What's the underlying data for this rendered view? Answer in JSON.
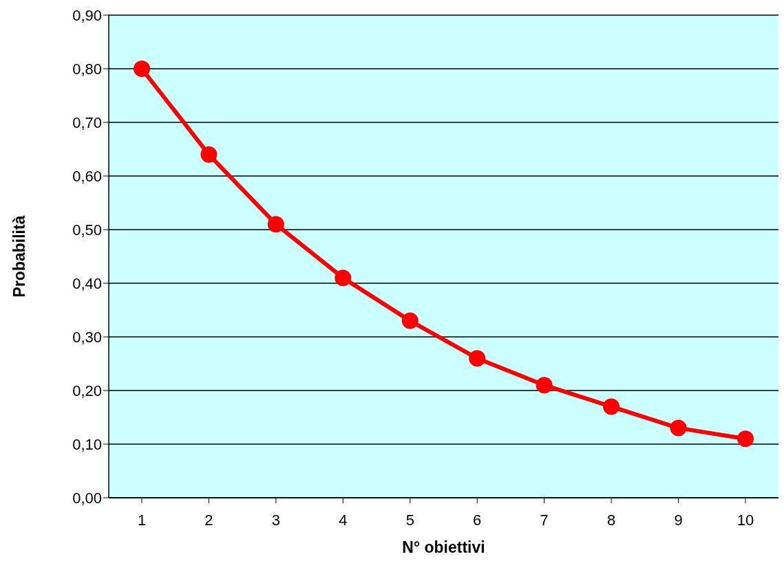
{
  "chart_data": {
    "type": "line",
    "xlabel": "N° obiettivi",
    "ylabel": "Probabilità",
    "categories": [
      "1",
      "2",
      "3",
      "4",
      "5",
      "6",
      "7",
      "8",
      "9",
      "10"
    ],
    "series": [
      {
        "color": "#ff0000",
        "values": [
          0.8,
          0.64,
          0.51,
          0.41,
          0.33,
          0.26,
          0.21,
          0.17,
          0.13,
          0.11
        ]
      }
    ],
    "ylim": [
      0,
      0.9
    ],
    "yticks": [
      {
        "value": 0,
        "label": "0,00"
      },
      {
        "value": 0.1,
        "label": "0,10"
      },
      {
        "value": 0.2,
        "label": "0,20"
      },
      {
        "value": 0.3,
        "label": "0,30"
      },
      {
        "value": 0.4,
        "label": "0,40"
      },
      {
        "value": 0.5,
        "label": "0,50"
      },
      {
        "value": 0.6,
        "label": "0,60"
      },
      {
        "value": 0.7,
        "label": "0,70"
      },
      {
        "value": 0.8,
        "label": "0,80"
      },
      {
        "value": 0.9,
        "label": "0,90"
      }
    ],
    "grid": "y",
    "marker": "circle",
    "line_style": "solid"
  }
}
